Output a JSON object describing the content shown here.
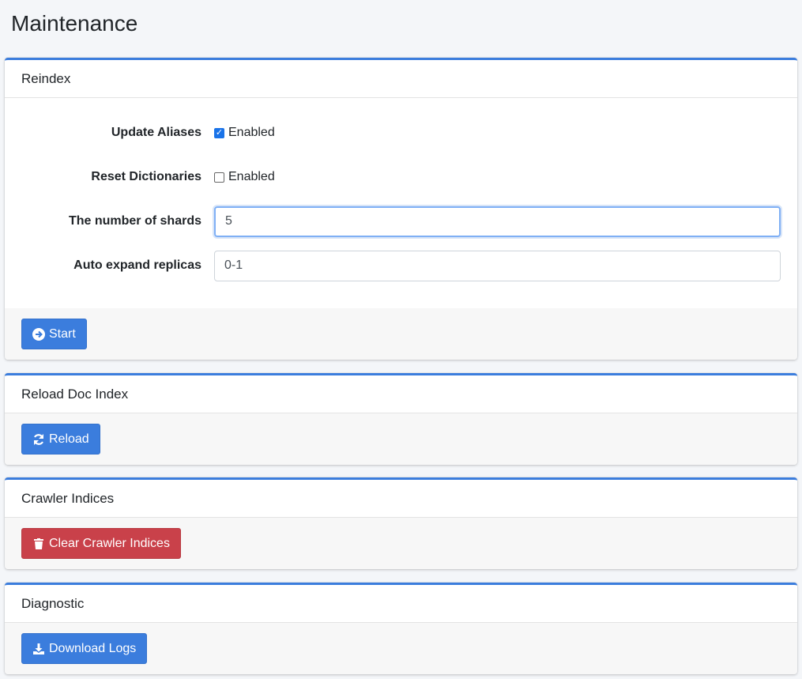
{
  "page": {
    "title": "Maintenance"
  },
  "reindex": {
    "title": "Reindex",
    "update_aliases": {
      "label": "Update Aliases",
      "option": "Enabled",
      "checked": true
    },
    "reset_dictionaries": {
      "label": "Reset Dictionaries",
      "option": "Enabled",
      "checked": false
    },
    "shards": {
      "label": "The number of shards",
      "value": "5"
    },
    "replicas": {
      "label": "Auto expand replicas",
      "value": "0-1"
    },
    "start_label": "Start"
  },
  "reload": {
    "title": "Reload Doc Index",
    "button_label": "Reload"
  },
  "crawler": {
    "title": "Crawler Indices",
    "button_label": "Clear Crawler Indices"
  },
  "diagnostic": {
    "title": "Diagnostic",
    "button_label": "Download Logs"
  },
  "colors": {
    "primary": "#3b7ddd",
    "danger": "#c9414a"
  }
}
